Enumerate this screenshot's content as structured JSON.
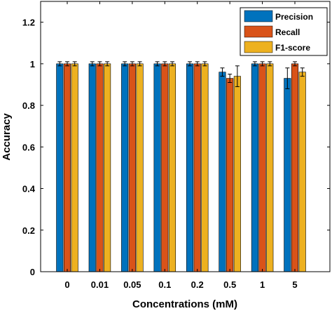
{
  "chart_data": {
    "type": "bar",
    "categories": [
      "0",
      "0.01",
      "0.05",
      "0.1",
      "0.2",
      "0.5",
      "1",
      "5"
    ],
    "series": [
      {
        "name": "Precision",
        "values": [
          1,
          1,
          1,
          1,
          1,
          0.96,
          1,
          0.93
        ],
        "errors": [
          0.01,
          0.01,
          0.01,
          0.01,
          0.01,
          0.02,
          0.01,
          0.05
        ]
      },
      {
        "name": "Recall",
        "values": [
          1,
          1,
          1,
          1,
          1,
          0.93,
          1,
          1
        ],
        "errors": [
          0.01,
          0.01,
          0.01,
          0.01,
          0.01,
          0.02,
          0.01,
          0.01
        ]
      },
      {
        "name": "F1-score",
        "values": [
          1,
          1,
          1,
          1,
          1,
          0.94,
          1,
          0.96
        ],
        "errors": [
          0.01,
          0.01,
          0.01,
          0.01,
          0.01,
          0.05,
          0.01,
          0.02
        ]
      }
    ],
    "colors": [
      "#0072bd",
      "#d95319",
      "#edb120"
    ],
    "xlabel": "Concentrations (mM)",
    "ylabel": "Accuracy",
    "ylim": [
      0,
      1.3
    ],
    "yticks": [
      "0",
      "0.2",
      "0.4",
      "0.6",
      "0.8",
      "1",
      "1.2"
    ],
    "ytick_values": [
      0,
      0.2,
      0.4,
      0.6,
      0.8,
      1,
      1.2
    ],
    "grid": false,
    "legend_position": "top-right"
  }
}
